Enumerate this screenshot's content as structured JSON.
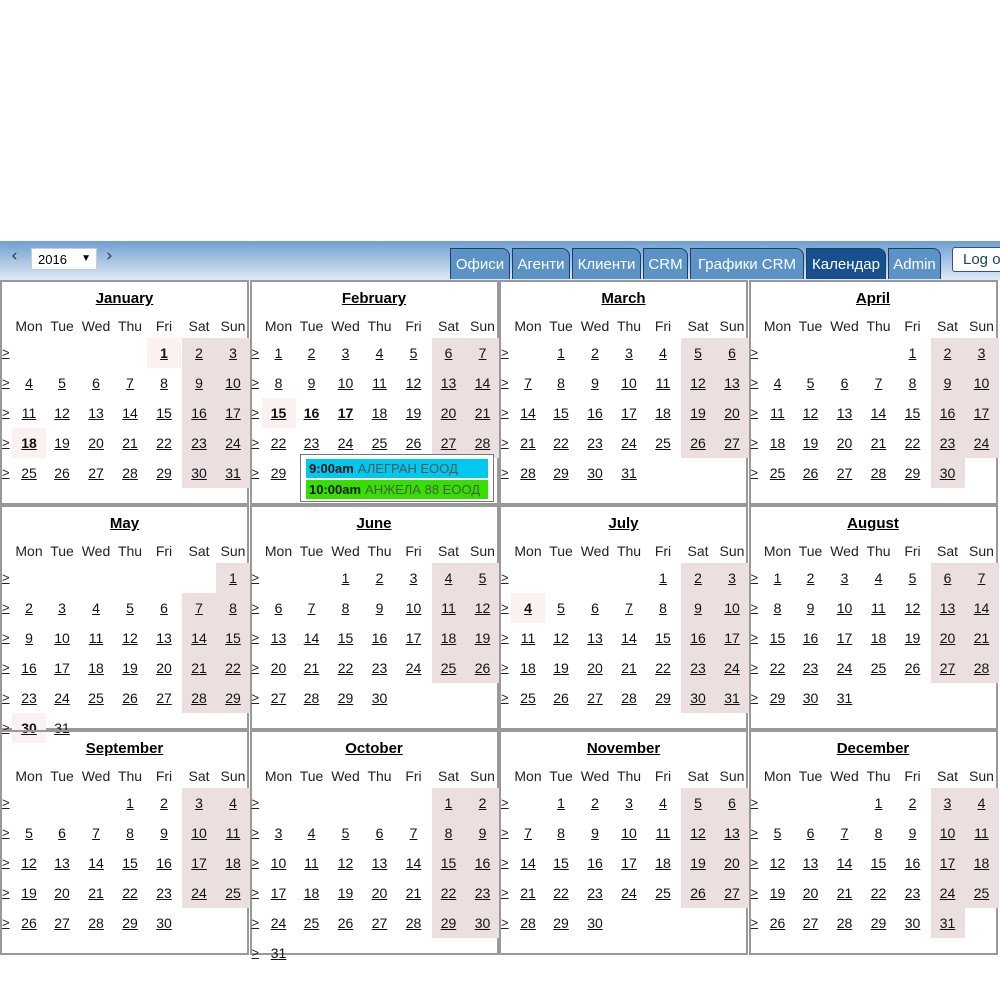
{
  "header": {
    "prev_icon": "‹",
    "next_icon": "›",
    "year": "2016",
    "dropdown_icon": "▼",
    "tabs": [
      {
        "label": "Офиси",
        "active": false
      },
      {
        "label": "Агенти",
        "active": false
      },
      {
        "label": "Клиенти",
        "active": false
      },
      {
        "label": "CRM",
        "active": false
      },
      {
        "label": "Графики CRM",
        "active": false
      },
      {
        "label": "Календар",
        "active": true
      },
      {
        "label": "Admin",
        "active": false
      }
    ],
    "logout_label": "Log out"
  },
  "calendar": {
    "year": 2016,
    "weekdays": [
      "Mon",
      "Tue",
      "Wed",
      "Thu",
      "Fri",
      "Sat",
      "Sun"
    ],
    "week_link": ">",
    "months": [
      "January",
      "February",
      "March",
      "April",
      "May",
      "June",
      "July",
      "August",
      "September",
      "October",
      "November",
      "December"
    ],
    "highlighted_days": {
      "1": [
        1,
        18
      ],
      "2": [
        15
      ],
      "5": [
        30
      ],
      "7": [
        4
      ]
    },
    "bold_days": {
      "1": [
        1,
        18
      ],
      "2": [
        15,
        16,
        17
      ],
      "5": [
        30
      ],
      "7": [
        4
      ]
    },
    "colors": {
      "weekend": "#ecdfdf",
      "highlight": "#fbf1f1"
    }
  },
  "popup": {
    "events": [
      {
        "time": "9:00am",
        "name": "АЛЕГРАН ЕООД",
        "color": "#00c8ee"
      },
      {
        "time": "10:00am",
        "name": "АНЖЕЛА 88 ЕООД",
        "color": "#33e000"
      }
    ]
  }
}
